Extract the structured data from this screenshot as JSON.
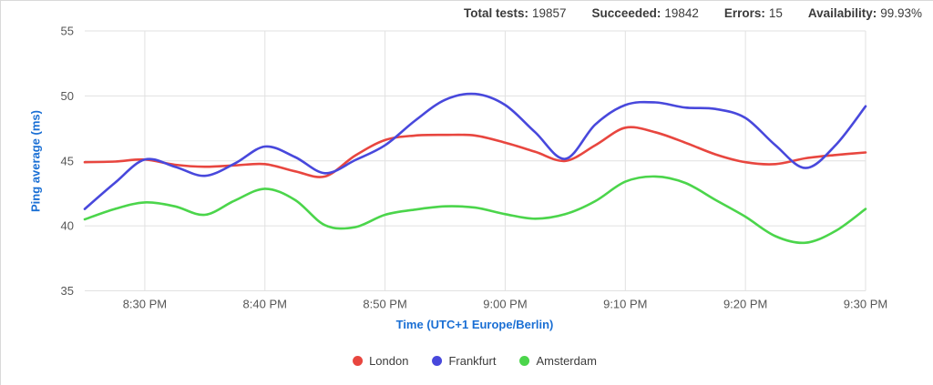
{
  "header": {
    "stats": [
      {
        "label": "Total tests:",
        "value": "19857"
      },
      {
        "label": "Succeeded:",
        "value": "19842"
      },
      {
        "label": "Errors:",
        "value": "15"
      },
      {
        "label": "Availability:",
        "value": "99.93%"
      }
    ]
  },
  "chart_data": {
    "type": "line",
    "title": "",
    "xlabel": "Time (UTC+1 Europe/Berlin)",
    "ylabel": "Ping average (ms)",
    "ylim": [
      35,
      55
    ],
    "y_ticks": [
      35,
      40,
      45,
      50,
      55
    ],
    "grid": true,
    "legend_position": "bottom",
    "x_unit": "minutes after 8:25 PM",
    "xlim_minutes": [
      0,
      65
    ],
    "x_ticks": [
      {
        "t": 5,
        "label": "8:30 PM"
      },
      {
        "t": 15,
        "label": "8:40 PM"
      },
      {
        "t": 25,
        "label": "8:50 PM"
      },
      {
        "t": 35,
        "label": "9:00 PM"
      },
      {
        "t": 45,
        "label": "9:10 PM"
      },
      {
        "t": 55,
        "label": "9:20 PM"
      },
      {
        "t": 65,
        "label": "9:30 PM"
      }
    ],
    "x": [
      0,
      2.5,
      5,
      7.5,
      10,
      12.5,
      15,
      17.5,
      20,
      22.5,
      25,
      27.5,
      30,
      32.5,
      35,
      37.5,
      40,
      42.5,
      45,
      47.5,
      50,
      52.5,
      55,
      57.5,
      60,
      62.5,
      65
    ],
    "series": [
      {
        "name": "London",
        "color": "#e8463f",
        "values": [
          44.9,
          44.95,
          45.1,
          44.7,
          44.55,
          44.65,
          44.75,
          44.2,
          43.8,
          45.4,
          46.6,
          46.95,
          47.0,
          46.95,
          46.4,
          45.7,
          45.0,
          46.2,
          47.55,
          47.2,
          46.4,
          45.5,
          44.9,
          44.75,
          45.2,
          45.45,
          45.65
        ]
      },
      {
        "name": "Frankfurt",
        "color": "#4848dc",
        "values": [
          41.3,
          43.3,
          45.1,
          44.55,
          43.85,
          44.8,
          46.1,
          45.3,
          44.05,
          45.05,
          46.2,
          48.1,
          49.7,
          50.15,
          49.3,
          47.2,
          45.15,
          47.8,
          49.3,
          49.5,
          49.1,
          49.0,
          48.3,
          46.2,
          44.45,
          46.2,
          49.2
        ]
      },
      {
        "name": "Amsterdam",
        "color": "#4bd54b",
        "values": [
          40.5,
          41.3,
          41.8,
          41.5,
          40.85,
          41.95,
          42.85,
          42.0,
          40.05,
          39.9,
          40.85,
          41.25,
          41.5,
          41.4,
          40.9,
          40.55,
          40.9,
          41.9,
          43.4,
          43.8,
          43.3,
          42.0,
          40.7,
          39.2,
          38.7,
          39.6,
          41.3
        ]
      }
    ],
    "style": {
      "grid_color": "#e1e1e1",
      "line_width": 2.6
    }
  }
}
